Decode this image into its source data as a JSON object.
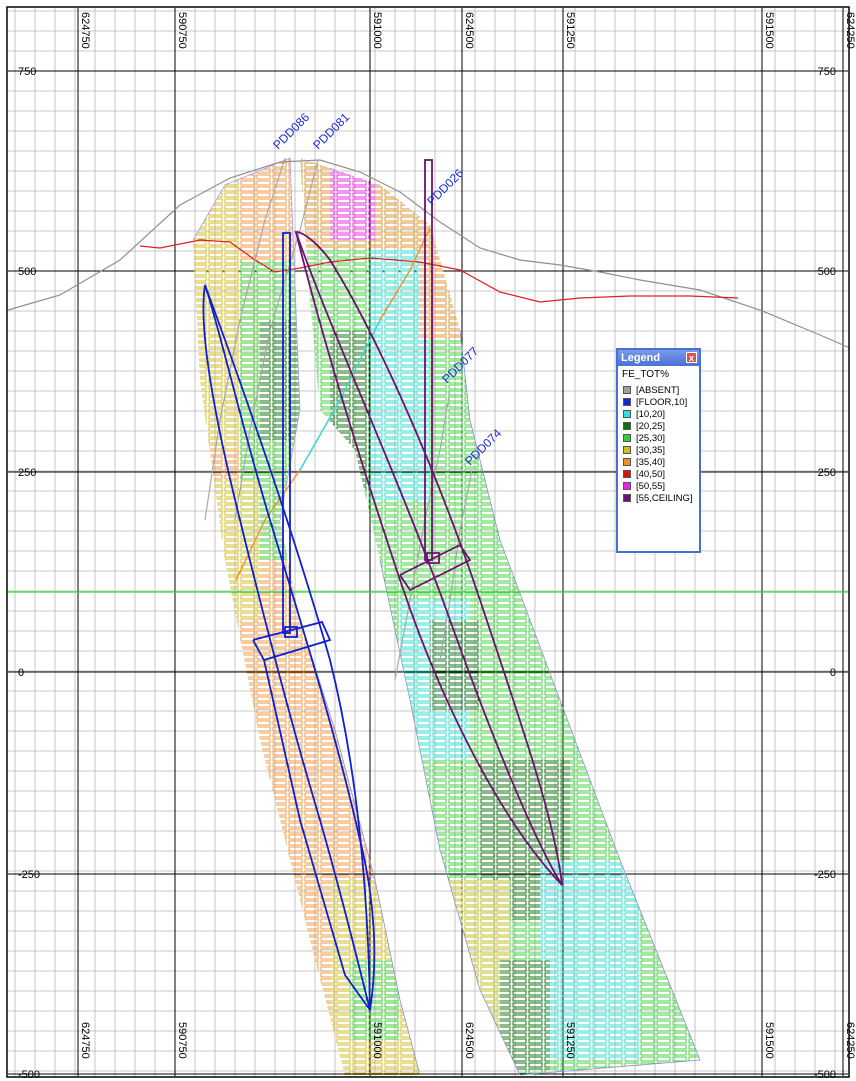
{
  "grid": {
    "x_labels_rotated": [
      "624750",
      "590750",
      "591000",
      "624500",
      "591250",
      "591500",
      "624250"
    ],
    "y_labels": [
      "750",
      "500",
      "250",
      "0",
      "-250",
      "-500"
    ]
  },
  "drillholes": [
    "PDD086",
    "PDD081",
    "PDD026",
    "PDD077",
    "PDD074"
  ],
  "legend": {
    "title": "Legend",
    "close": "x",
    "field": "FE_TOT%",
    "items": [
      {
        "label": "[ABSENT]",
        "color": "#a0a0a0"
      },
      {
        "label": "[FLOOR,10]",
        "color": "#1028d8"
      },
      {
        "label": "[10,20]",
        "color": "#30e0e0"
      },
      {
        "label": "[20,25]",
        "color": "#107010"
      },
      {
        "label": "[25,30]",
        "color": "#30d030"
      },
      {
        "label": "[30,35]",
        "color": "#d0c020"
      },
      {
        "label": "[35,40]",
        "color": "#f09030"
      },
      {
        "label": "[40,50]",
        "color": "#e01010"
      },
      {
        "label": "[50,55]",
        "color": "#f020f0"
      },
      {
        "label": "[55,CEILING]",
        "color": "#701070"
      }
    ]
  },
  "colors": {
    "grid_major": "#000000",
    "grid_minor": "#b8b8b8",
    "topography": "#909090",
    "weathering": "#e02020",
    "water_level": "#30e030",
    "left_shell": "#1020d0",
    "right_shell": "#701070"
  }
}
